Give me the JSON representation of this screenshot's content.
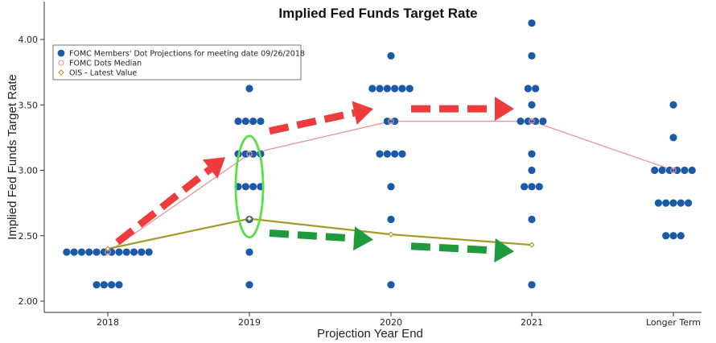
{
  "colors": {
    "dots": "#1b5aa6",
    "median": "#e8959a",
    "ois": "#a89a2a",
    "red_arrow": "#ee3b3b",
    "green_arrow": "#1f9a3c",
    "highlight": "#58e048",
    "axis": "#333333"
  },
  "chart_data": {
    "type": "scatter",
    "title": "Implied Fed Funds Target Rate",
    "xlabel": "Projection Year End",
    "ylabel": "Implied Fed Funds Target Rate",
    "categories": [
      "2018",
      "2019",
      "2020",
      "2021",
      "Longer Term"
    ],
    "ylim": [
      1.95,
      4.25
    ],
    "yticks": [
      "2.00",
      "2.50",
      "3.00",
      "3.50",
      "4.00"
    ],
    "legend": {
      "position": "top-left",
      "entries": [
        "FOMC Members' Dot Projections for meeting date 09/26/2018",
        "FOMC Dots Median",
        "OIS - Latest Value"
      ]
    },
    "dot_projections": [
      {
        "category": "2018",
        "levels": [
          {
            "rate": 2.375,
            "count": 12
          },
          {
            "rate": 2.125,
            "count": 4
          }
        ]
      },
      {
        "category": "2019",
        "levels": [
          {
            "rate": 3.625,
            "count": 1
          },
          {
            "rate": 3.375,
            "count": 4
          },
          {
            "rate": 3.125,
            "count": 4
          },
          {
            "rate": 2.875,
            "count": 4
          },
          {
            "rate": 2.625,
            "count": 1
          },
          {
            "rate": 2.375,
            "count": 1
          },
          {
            "rate": 2.125,
            "count": 1
          }
        ]
      },
      {
        "category": "2020",
        "levels": [
          {
            "rate": 3.875,
            "count": 1
          },
          {
            "rate": 3.625,
            "count": 6
          },
          {
            "rate": 3.375,
            "count": 2
          },
          {
            "rate": 3.125,
            "count": 4
          },
          {
            "rate": 2.875,
            "count": 1
          },
          {
            "rate": 2.625,
            "count": 1
          },
          {
            "rate": 2.125,
            "count": 1
          }
        ]
      },
      {
        "category": "2021",
        "levels": [
          {
            "rate": 4.125,
            "count": 1
          },
          {
            "rate": 3.875,
            "count": 1
          },
          {
            "rate": 3.625,
            "count": 2
          },
          {
            "rate": 3.5,
            "count": 1
          },
          {
            "rate": 3.375,
            "count": 4
          },
          {
            "rate": 3.125,
            "count": 1
          },
          {
            "rate": 3.0,
            "count": 1
          },
          {
            "rate": 2.875,
            "count": 3
          },
          {
            "rate": 2.625,
            "count": 1
          },
          {
            "rate": 2.125,
            "count": 1
          }
        ]
      },
      {
        "category": "Longer Term",
        "levels": [
          {
            "rate": 3.5,
            "count": 1
          },
          {
            "rate": 3.25,
            "count": 1
          },
          {
            "rate": 3.0,
            "count": 6
          },
          {
            "rate": 2.75,
            "count": 5
          },
          {
            "rate": 2.5,
            "count": 3
          }
        ]
      }
    ],
    "series": [
      {
        "name": "FOMC Dots Median",
        "categories": [
          "2018",
          "2019",
          "2020",
          "2021",
          "Longer Term"
        ],
        "values": [
          2.375,
          3.125,
          3.375,
          3.375,
          3.0
        ]
      },
      {
        "name": "OIS - Latest Value",
        "categories": [
          "2018",
          "2019",
          "2020",
          "2021"
        ],
        "values": [
          2.4,
          2.63,
          2.51,
          2.43
        ]
      }
    ],
    "annotations": [
      {
        "type": "ellipse",
        "category": "2019",
        "y_range": [
          2.5,
          3.25
        ]
      },
      {
        "type": "arrow",
        "color": "red",
        "from": {
          "category": "2018",
          "rate": 2.45
        },
        "to": {
          "category": "2019",
          "rate": 3.1
        }
      },
      {
        "type": "arrow",
        "color": "red",
        "from": {
          "category": "2019",
          "rate": 3.3
        },
        "to": {
          "category": "2020",
          "rate": 3.47
        }
      },
      {
        "type": "arrow",
        "color": "red",
        "from": {
          "category": "2020",
          "rate": 3.47
        },
        "to": {
          "category": "2021",
          "rate": 3.47
        }
      },
      {
        "type": "arrow",
        "color": "green",
        "from": {
          "category": "2019",
          "rate": 2.52
        },
        "to": {
          "category": "2020",
          "rate": 2.47
        }
      },
      {
        "type": "arrow",
        "color": "green",
        "from": {
          "category": "2020",
          "rate": 2.42
        },
        "to": {
          "category": "2021",
          "rate": 2.38
        }
      }
    ]
  }
}
